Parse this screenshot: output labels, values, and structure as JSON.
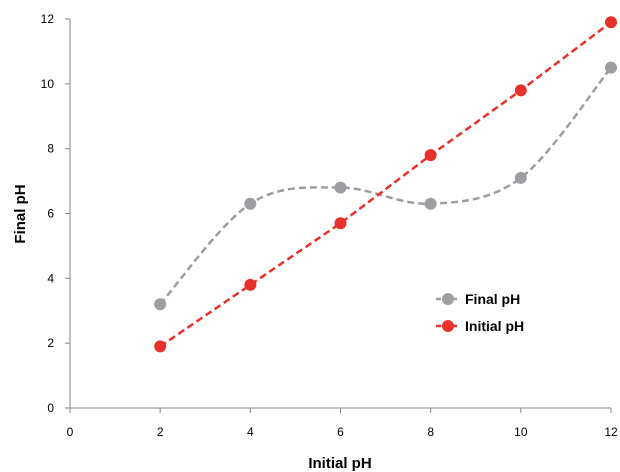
{
  "chart_data": {
    "type": "line",
    "title": "",
    "xlabel": "Initial pH",
    "ylabel": "Final pH",
    "xlim": [
      0,
      12
    ],
    "ylim": [
      0,
      12
    ],
    "x_ticks": [
      0,
      2,
      4,
      6,
      8,
      10,
      12
    ],
    "y_ticks": [
      0,
      2,
      4,
      6,
      8,
      10,
      12
    ],
    "x_tick_labels": [
      "0",
      "2",
      "4",
      "6",
      "8",
      "10",
      "12"
    ],
    "y_tick_labels": [
      "0",
      "2",
      "4",
      "6",
      "8",
      "10",
      "12"
    ],
    "grid": false,
    "legend_position": "right",
    "series": [
      {
        "name": "Final pH",
        "color": "#9e9ea2",
        "line_style": "dashed",
        "smooth": true,
        "marker": "circle",
        "x": [
          2,
          4,
          6,
          8,
          10,
          12
        ],
        "y": [
          3.2,
          6.3,
          6.8,
          6.3,
          7.1,
          10.5
        ]
      },
      {
        "name": "Initial pH",
        "color": "#e8312a",
        "line_style": "dashed",
        "smooth": false,
        "marker": "circle",
        "x": [
          2,
          4,
          6,
          8,
          10,
          12
        ],
        "y": [
          1.9,
          3.8,
          5.7,
          7.8,
          9.8,
          11.9
        ]
      }
    ]
  }
}
